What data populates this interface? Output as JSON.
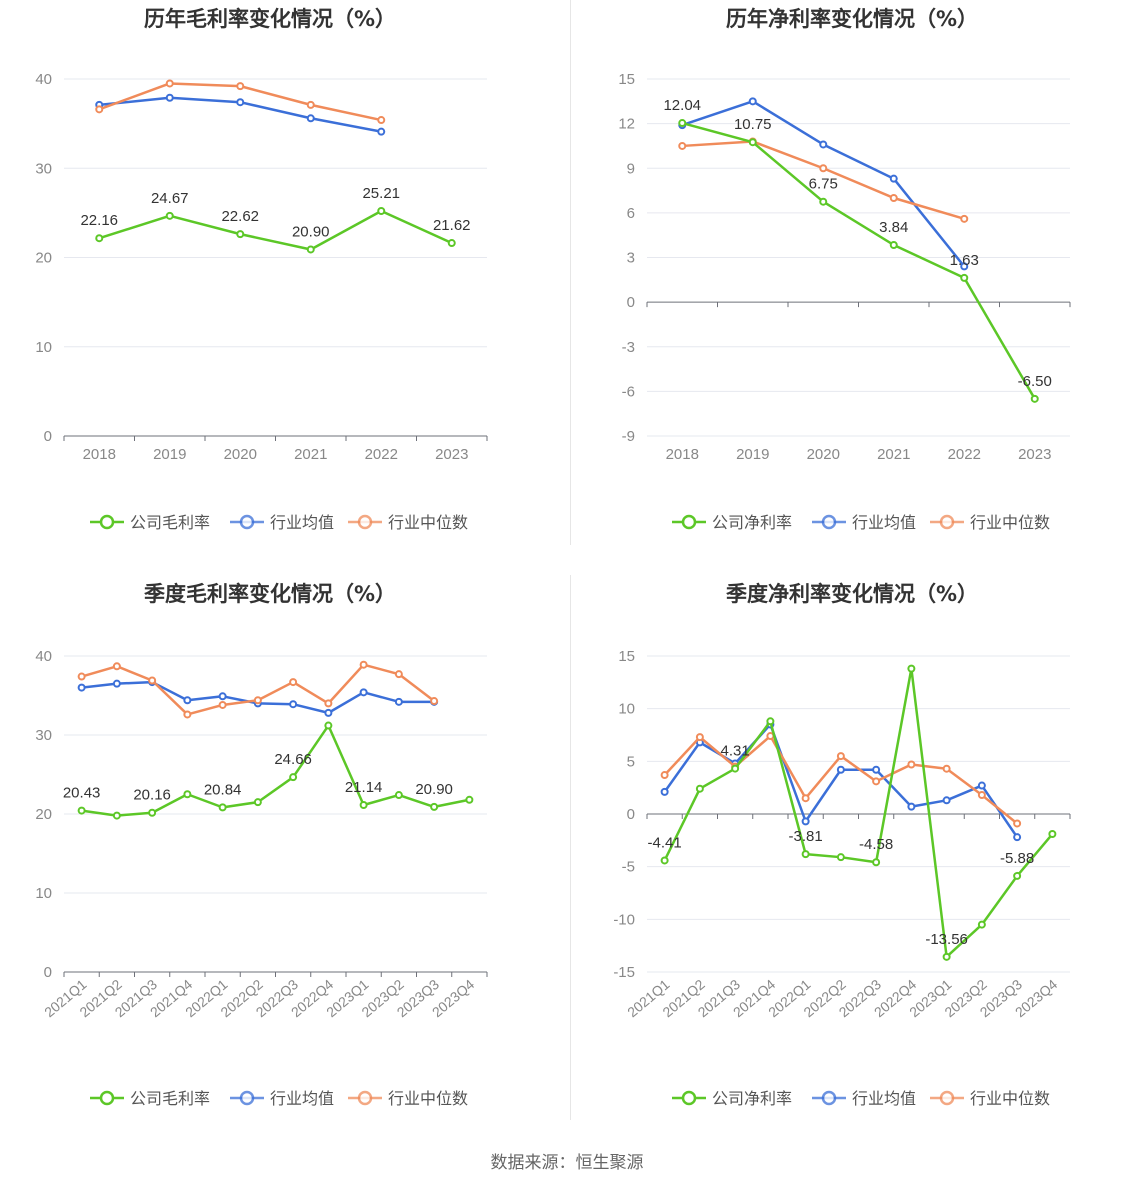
{
  "colors": {
    "company": "#5cc727",
    "industry_avg": "#3b6fd8",
    "industry_median": "#f08b5a",
    "grid": "#e6e8ef",
    "axis_text": "#888888",
    "title_text": "#333333"
  },
  "footer": "数据来源：恒生聚源",
  "chart_data": [
    {
      "id": "annual-gross",
      "type": "line",
      "title": "历年毛利率变化情况（%）",
      "categories": [
        "2018",
        "2019",
        "2020",
        "2021",
        "2022",
        "2023"
      ],
      "ylim": [
        0,
        40
      ],
      "yticks": [
        0,
        10,
        20,
        30,
        40
      ],
      "grid": true,
      "legend_position": "bottom",
      "series": [
        {
          "name": "公司毛利率",
          "key": "company",
          "values": [
            22.16,
            24.67,
            22.62,
            20.9,
            25.21,
            21.62
          ],
          "labels": [
            "22.16",
            "24.67",
            "22.62",
            "20.90",
            "25.21",
            "21.62"
          ]
        },
        {
          "name": "行业均值",
          "key": "industry_avg",
          "values": [
            37.1,
            37.9,
            37.4,
            35.6,
            34.1,
            null
          ]
        },
        {
          "name": "行业中位数",
          "key": "industry_median",
          "values": [
            36.6,
            39.5,
            39.2,
            37.1,
            35.4,
            null
          ]
        }
      ]
    },
    {
      "id": "annual-net",
      "type": "line",
      "title": "历年净利率变化情况（%）",
      "categories": [
        "2018",
        "2019",
        "2020",
        "2021",
        "2022",
        "2023"
      ],
      "ylim": [
        -9,
        15
      ],
      "yticks": [
        -9,
        -6,
        -3,
        0,
        3,
        6,
        9,
        12,
        15
      ],
      "grid": true,
      "legend_position": "bottom",
      "series": [
        {
          "name": "公司净利率",
          "key": "company",
          "values": [
            12.04,
            10.75,
            6.75,
            3.84,
            1.63,
            -6.5
          ],
          "labels": [
            "12.04",
            "10.75",
            "6.75",
            "3.84",
            "1.63",
            "-6.50"
          ]
        },
        {
          "name": "行业均值",
          "key": "industry_avg",
          "values": [
            11.9,
            13.5,
            10.6,
            8.3,
            2.4,
            null
          ]
        },
        {
          "name": "行业中位数",
          "key": "industry_median",
          "values": [
            10.5,
            10.8,
            9.0,
            7.0,
            5.6,
            null
          ]
        }
      ]
    },
    {
      "id": "quarterly-gross",
      "type": "line",
      "title": "季度毛利率变化情况（%）",
      "categories": [
        "2021Q1",
        "2021Q2",
        "2021Q3",
        "2021Q4",
        "2022Q1",
        "2022Q2",
        "2022Q3",
        "2022Q4",
        "2023Q1",
        "2023Q2",
        "2023Q3",
        "2023Q4"
      ],
      "ylim": [
        0,
        40
      ],
      "yticks": [
        0,
        10,
        20,
        30,
        40
      ],
      "grid": true,
      "legend_position": "bottom",
      "series": [
        {
          "name": "公司毛利率",
          "key": "company",
          "values": [
            20.43,
            19.8,
            20.16,
            22.5,
            20.84,
            21.5,
            24.66,
            31.2,
            21.14,
            22.4,
            20.9,
            21.8
          ],
          "labels": [
            "20.43",
            "",
            "20.16",
            "",
            "20.84",
            "",
            "24.66",
            "",
            "21.14",
            "",
            "20.90",
            ""
          ]
        },
        {
          "name": "行业均值",
          "key": "industry_avg",
          "values": [
            36.0,
            36.5,
            36.7,
            34.4,
            34.9,
            34.0,
            33.9,
            32.8,
            35.4,
            34.2,
            34.2,
            null
          ]
        },
        {
          "name": "行业中位数",
          "key": "industry_median",
          "values": [
            37.4,
            38.7,
            36.9,
            32.6,
            33.8,
            34.4,
            36.7,
            34.0,
            38.9,
            37.7,
            34.3,
            null
          ]
        }
      ]
    },
    {
      "id": "quarterly-net",
      "type": "line",
      "title": "季度净利率变化情况（%）",
      "categories": [
        "2021Q1",
        "2021Q2",
        "2021Q3",
        "2021Q4",
        "2022Q1",
        "2022Q2",
        "2022Q3",
        "2022Q4",
        "2023Q1",
        "2023Q2",
        "2023Q3",
        "2023Q4"
      ],
      "ylim": [
        -15,
        15
      ],
      "yticks": [
        -15,
        -10,
        -5,
        0,
        5,
        10,
        15
      ],
      "grid": true,
      "legend_position": "bottom",
      "series": [
        {
          "name": "公司净利率",
          "key": "company",
          "values": [
            -4.41,
            2.4,
            4.31,
            8.8,
            -3.81,
            -4.1,
            -4.58,
            13.8,
            -13.56,
            -10.5,
            -5.88,
            -1.9
          ],
          "labels": [
            "-4.41",
            "",
            "4.31",
            "",
            "-3.81",
            "",
            "-4.58",
            "",
            "-13.56",
            "",
            "-5.88",
            ""
          ]
        },
        {
          "name": "行业均值",
          "key": "industry_avg",
          "values": [
            2.1,
            6.8,
            4.8,
            8.5,
            -0.7,
            4.2,
            4.2,
            0.7,
            1.3,
            2.7,
            -2.2,
            null
          ]
        },
        {
          "name": "行业中位数",
          "key": "industry_median",
          "values": [
            3.7,
            7.3,
            4.5,
            7.4,
            1.5,
            5.5,
            3.1,
            4.7,
            4.3,
            1.8,
            -0.9,
            null
          ]
        }
      ]
    }
  ]
}
